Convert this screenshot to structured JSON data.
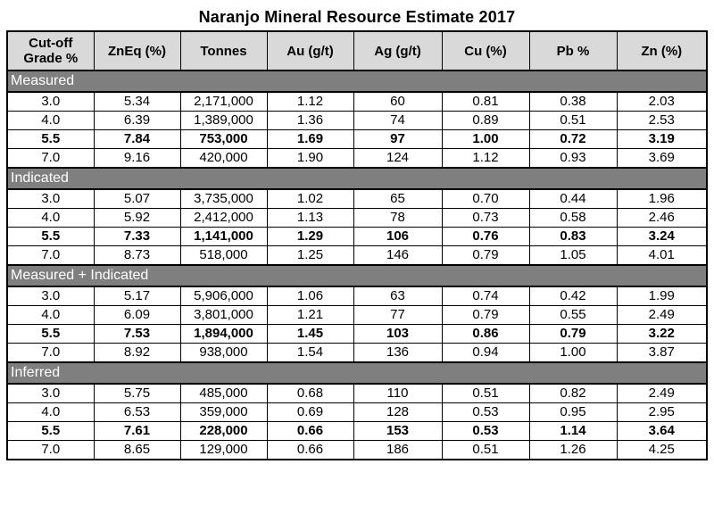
{
  "title": "Naranjo Mineral Resource Estimate 2017",
  "headers": [
    "Cut-off Grade %",
    "ZnEq (%)",
    "Tonnes",
    "Au (g/t)",
    "Ag (g/t)",
    "Cu (%)",
    "Pb %",
    "Zn (%)"
  ],
  "sections": [
    {
      "name": "Measured",
      "rows": [
        [
          "3.0",
          "5.34",
          "2,171,000",
          "1.12",
          "60",
          "0.81",
          "0.38",
          "2.03"
        ],
        [
          "4.0",
          "6.39",
          "1,389,000",
          "1.36",
          "74",
          "0.89",
          "0.51",
          "2.53"
        ],
        [
          "5.5",
          "7.84",
          "753,000",
          "1.69",
          "97",
          "1.00",
          "0.72",
          "3.19"
        ],
        [
          "7.0",
          "9.16",
          "420,000",
          "1.90",
          "124",
          "1.12",
          "0.93",
          "3.69"
        ]
      ]
    },
    {
      "name": "Indicated",
      "rows": [
        [
          "3.0",
          "5.07",
          "3,735,000",
          "1.02",
          "65",
          "0.70",
          "0.44",
          "1.96"
        ],
        [
          "4.0",
          "5.92",
          "2,412,000",
          "1.13",
          "78",
          "0.73",
          "0.58",
          "2.46"
        ],
        [
          "5.5",
          "7.33",
          "1,141,000",
          "1.29",
          "106",
          "0.76",
          "0.83",
          "3.24"
        ],
        [
          "7.0",
          "8.73",
          "518,000",
          "1.25",
          "146",
          "0.79",
          "1.05",
          "4.01"
        ]
      ]
    },
    {
      "name": "Measured + Indicated",
      "rows": [
        [
          "3.0",
          "5.17",
          "5,906,000",
          "1.06",
          "63",
          "0.74",
          "0.42",
          "1.99"
        ],
        [
          "4.0",
          "6.09",
          "3,801,000",
          "1.21",
          "77",
          "0.79",
          "0.55",
          "2.49"
        ],
        [
          "5.5",
          "7.53",
          "1,894,000",
          "1.45",
          "103",
          "0.86",
          "0.79",
          "3.22"
        ],
        [
          "7.0",
          "8.92",
          "938,000",
          "1.54",
          "136",
          "0.94",
          "1.00",
          "3.87"
        ]
      ]
    },
    {
      "name": "Inferred",
      "rows": [
        [
          "3.0",
          "5.75",
          "485,000",
          "0.68",
          "110",
          "0.51",
          "0.82",
          "2.49"
        ],
        [
          "4.0",
          "6.53",
          "359,000",
          "0.69",
          "128",
          "0.53",
          "0.95",
          "2.95"
        ],
        [
          "5.5",
          "7.61",
          "228,000",
          "0.66",
          "153",
          "0.53",
          "1.14",
          "3.64"
        ],
        [
          "7.0",
          "8.65",
          "129,000",
          "0.66",
          "186",
          "0.51",
          "1.26",
          "4.25"
        ]
      ]
    }
  ],
  "bold_cutoff": "5.5"
}
